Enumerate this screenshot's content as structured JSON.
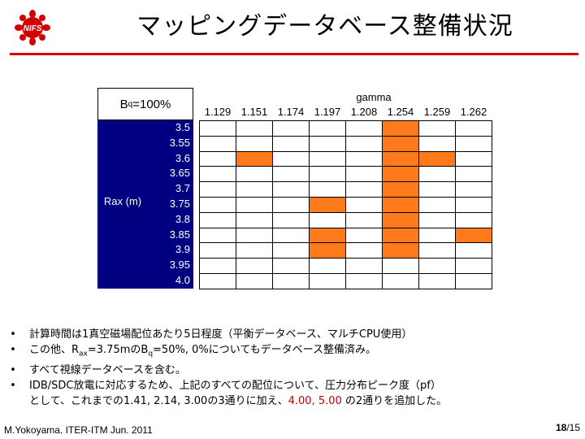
{
  "slide": {
    "title": "マッピングデータベース整備状況",
    "logo_text": "NIFS",
    "colors": {
      "accent_rule": "#d40000",
      "rax_bg": "#000080",
      "highlight_cell": "#ff7a1a",
      "emphasis_text": "#c00000"
    }
  },
  "table": {
    "bq_prefix": "B",
    "bq_sub": "q",
    "bq_suffix": "=100%",
    "gamma_label": "gamma",
    "gamma_values": [
      "1.129",
      "1.151",
      "1.174",
      "1.197",
      "1.208",
      "1.254",
      "1.259",
      "1.262"
    ],
    "rax_label": "Rax (m)",
    "rax_values": [
      "3.5",
      "3.55",
      "3.6",
      "3.65",
      "3.7",
      "3.75",
      "3.8",
      "3.85",
      "3.9",
      "3.95",
      "4.0"
    ],
    "highlighted": [
      [
        0,
        0,
        0,
        0,
        0,
        1,
        0,
        0
      ],
      [
        0,
        0,
        0,
        0,
        0,
        1,
        0,
        0
      ],
      [
        0,
        1,
        0,
        0,
        0,
        1,
        1,
        0
      ],
      [
        0,
        0,
        0,
        0,
        0,
        1,
        0,
        0
      ],
      [
        0,
        0,
        0,
        0,
        0,
        1,
        0,
        0
      ],
      [
        0,
        0,
        0,
        1,
        0,
        1,
        0,
        0
      ],
      [
        0,
        0,
        0,
        0,
        0,
        1,
        0,
        0
      ],
      [
        0,
        0,
        0,
        1,
        0,
        1,
        0,
        1
      ],
      [
        0,
        0,
        0,
        1,
        0,
        1,
        0,
        0
      ],
      [
        0,
        0,
        0,
        0,
        0,
        0,
        0,
        0
      ],
      [
        0,
        0,
        0,
        0,
        0,
        0,
        0,
        0
      ]
    ]
  },
  "bullets": {
    "b1": "計算時間は1真空磁場配位あたり5日程度（平衡データベース、マルチCPU使用）",
    "b2_pre": "この他、R",
    "b2_sub1": "ax",
    "b2_mid": "=3.75mのB",
    "b2_sub2": "q",
    "b2_post": "=50%, 0%についてもデータベース整備済み。",
    "b3": "すべて視線データベースを含む。",
    "b4_line1": "IDB/SDC放電に対応するため、上記のすべての配位について、圧力分布ピーク度（pf）",
    "b4_line2_pre": "として、これまでの1.41, 2.14, 3.00の3通りに加え、",
    "b4_line2_hl": "4.00, 5.00",
    "b4_line2_post": " の2通りを追加した。"
  },
  "footer": {
    "author": "M.Yokoyama. ITER-ITM Jun. 2011",
    "page": "18",
    "total": "/15"
  }
}
